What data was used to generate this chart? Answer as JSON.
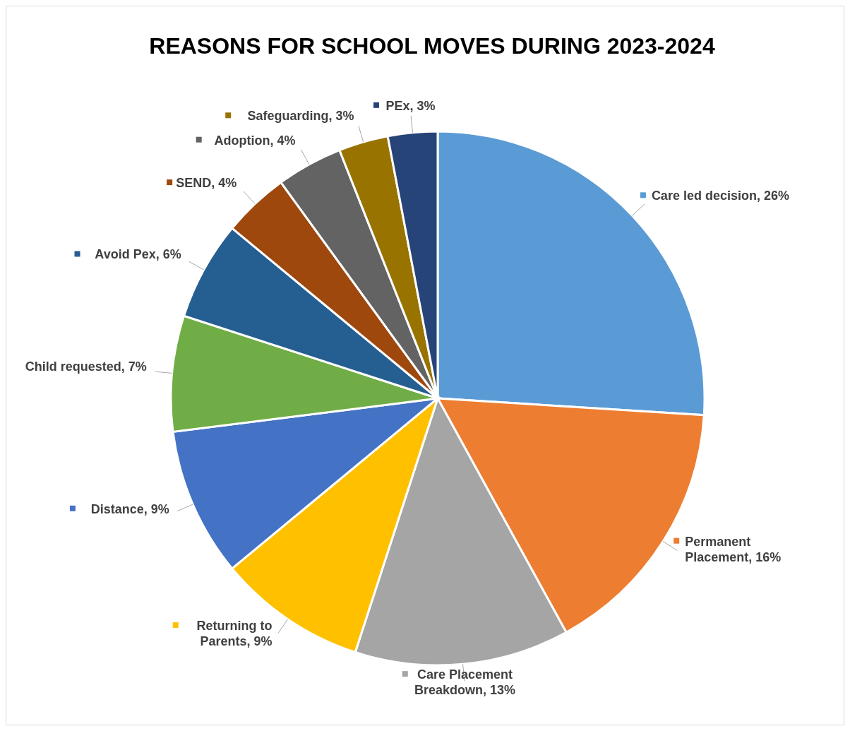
{
  "chart_data": {
    "type": "pie",
    "title": "REASONS FOR SCHOOL MOVES DURING 2023-2024",
    "categories": [
      "Care led decision",
      "Permanent Placement",
      "Care Placement Breakdown",
      "Returning to Parents",
      "Distance",
      "Child requested",
      "Avoid Pex",
      "SEND",
      "Adoption",
      "Safeguarding",
      "PEx"
    ],
    "values": [
      26,
      16,
      13,
      9,
      9,
      7,
      6,
      4,
      4,
      3,
      3
    ],
    "colors": [
      "#5b9bd5",
      "#ed7d31",
      "#a5a5a5",
      "#ffc000",
      "#4472c4",
      "#70ad47",
      "#255e91",
      "#9e480e",
      "#636363",
      "#997300",
      "#264478"
    ],
    "legend": "left",
    "value_labels": [
      "26%",
      "16%",
      "13%",
      "9%",
      "9%",
      "7%",
      "6%",
      "4%",
      "4%",
      "3%",
      "3%"
    ]
  }
}
